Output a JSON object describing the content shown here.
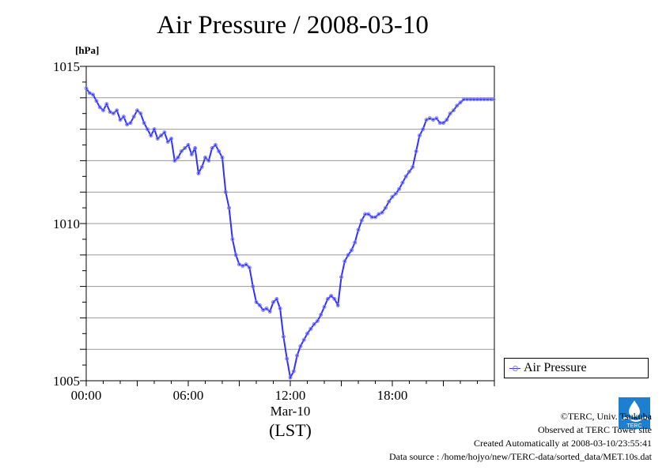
{
  "title": "Air Pressure / 2008-03-10",
  "chart_data": {
    "type": "line",
    "title": "Air Pressure / 2008-03-10",
    "ylabel": "[hPa]",
    "xlabel": "(LST)",
    "x_date_label": "Mar-10",
    "ylim": [
      1005,
      1015
    ],
    "xlim_hours": [
      0,
      24
    ],
    "yticks": [
      "1005",
      "1010",
      "1015"
    ],
    "xticks": [
      {
        "hour": 0,
        "label": "00:00"
      },
      {
        "hour": 6,
        "label": "06:00"
      },
      {
        "hour": 12,
        "label": "12:00"
      },
      {
        "hour": 18,
        "label": "18:00"
      }
    ],
    "grid": true,
    "legend": "right",
    "series": [
      {
        "name": "Air Pressure",
        "color": "#3030ff",
        "marker_color": "#8080ff",
        "x_hours": [
          0.0,
          0.2,
          0.4,
          0.6,
          0.8,
          1.0,
          1.2,
          1.4,
          1.6,
          1.8,
          2.0,
          2.2,
          2.4,
          2.6,
          2.8,
          3.0,
          3.2,
          3.4,
          3.6,
          3.8,
          4.0,
          4.2,
          4.4,
          4.6,
          4.8,
          5.0,
          5.2,
          5.4,
          5.6,
          5.8,
          6.0,
          6.2,
          6.4,
          6.6,
          6.8,
          7.0,
          7.2,
          7.4,
          7.6,
          7.8,
          8.0,
          8.2,
          8.4,
          8.6,
          8.8,
          9.0,
          9.2,
          9.4,
          9.6,
          9.8,
          10.0,
          10.2,
          10.4,
          10.6,
          10.8,
          11.0,
          11.2,
          11.4,
          11.6,
          11.8,
          12.0,
          12.2,
          12.4,
          12.6,
          12.8,
          13.0,
          13.2,
          13.4,
          13.6,
          13.8,
          14.0,
          14.2,
          14.4,
          14.6,
          14.8,
          15.0,
          15.2,
          15.4,
          15.6,
          15.8,
          16.0,
          16.2,
          16.4,
          16.6,
          16.8,
          17.0,
          17.2,
          17.4,
          17.6,
          17.8,
          18.0,
          18.2,
          18.4,
          18.6,
          18.8,
          19.0,
          19.2,
          19.4,
          19.6,
          19.8,
          20.0,
          20.2,
          20.4,
          20.6,
          20.8,
          21.0,
          21.2,
          21.4,
          21.6,
          21.8,
          22.0,
          22.2,
          22.4,
          22.6,
          22.8,
          23.0,
          23.2,
          23.4,
          23.6,
          23.8,
          23.95
        ],
        "values": [
          1014.3,
          1014.15,
          1014.1,
          1013.9,
          1013.7,
          1013.6,
          1013.8,
          1013.55,
          1013.5,
          1013.6,
          1013.3,
          1013.4,
          1013.15,
          1013.2,
          1013.4,
          1013.6,
          1013.5,
          1013.2,
          1013.0,
          1012.8,
          1013.0,
          1012.7,
          1012.8,
          1012.9,
          1012.6,
          1012.7,
          1012.0,
          1012.1,
          1012.3,
          1012.4,
          1012.5,
          1012.2,
          1012.4,
          1011.6,
          1011.8,
          1012.1,
          1012.0,
          1012.4,
          1012.5,
          1012.3,
          1012.1,
          1011.0,
          1010.5,
          1009.5,
          1009.0,
          1008.7,
          1008.65,
          1008.7,
          1008.6,
          1008.0,
          1007.5,
          1007.4,
          1007.25,
          1007.3,
          1007.2,
          1007.5,
          1007.6,
          1007.3,
          1006.4,
          1005.7,
          1005.1,
          1005.3,
          1005.8,
          1006.1,
          1006.3,
          1006.5,
          1006.65,
          1006.8,
          1006.9,
          1007.1,
          1007.35,
          1007.6,
          1007.7,
          1007.6,
          1007.4,
          1008.3,
          1008.8,
          1009.0,
          1009.15,
          1009.4,
          1009.8,
          1010.1,
          1010.3,
          1010.3,
          1010.2,
          1010.2,
          1010.3,
          1010.35,
          1010.5,
          1010.7,
          1010.85,
          1010.95,
          1011.1,
          1011.3,
          1011.5,
          1011.65,
          1011.8,
          1012.3,
          1012.8,
          1013.0,
          1013.3,
          1013.35,
          1013.3,
          1013.35,
          1013.2,
          1013.2,
          1013.3,
          1013.5,
          1013.6,
          1013.75,
          1013.85,
          1013.95,
          1013.95,
          1013.95,
          1013.95,
          1013.95,
          1013.95,
          1013.95,
          1013.95,
          1013.95,
          1013.95
        ]
      }
    ]
  },
  "footer": {
    "copyright": "©TERC, Univ. Tsukuba",
    "observed": "Observed at TERC Tower site",
    "created": "Created Automatically at 2008-03-10/23:55:41",
    "source": "Data source : /home/hojyo/new/TERC-data/sorted_data/MET.10s.dat"
  },
  "logo": {
    "text": "TERC",
    "color": "#1e7fd0"
  }
}
